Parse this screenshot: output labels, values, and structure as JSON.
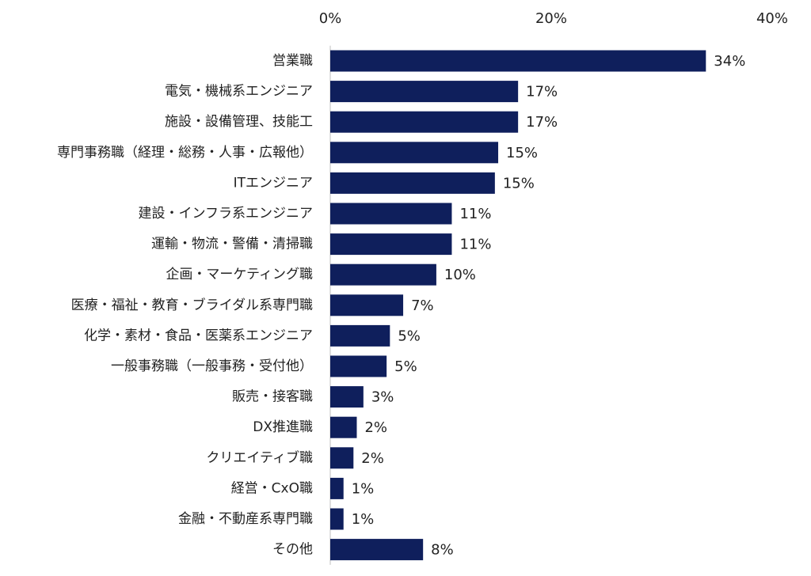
{
  "chart_data": {
    "type": "bar",
    "orientation": "horizontal",
    "categories": [
      "営業職",
      "電気・機械系エンジニア",
      "施設・設備管理、技能工",
      "専門事務職（経理・総務・人事・広報他）",
      "ITエンジニア",
      "建設・インフラ系エンジニア",
      "運輸・物流・警備・清掃職",
      "企画・マーケティング職",
      "医療・福祉・教育・ブライダル系専門職",
      "化学・素材・食品・医薬系エンジニア",
      "一般事務職（一般事務・受付他）",
      "販売・接客職",
      "DX推進職",
      "クリエイティブ職",
      "経営・CxO職",
      "金融・不動産系専門職",
      "その他"
    ],
    "values": [
      34,
      17,
      17,
      15,
      15,
      11,
      11,
      10,
      7,
      5,
      5,
      3,
      2,
      2,
      1,
      1,
      8
    ],
    "bar_values": [
      34.0,
      17.0,
      17.0,
      15.2,
      14.9,
      11.0,
      11.0,
      9.6,
      6.6,
      5.4,
      5.1,
      3.0,
      2.4,
      2.1,
      1.2,
      1.2,
      8.4
    ],
    "value_labels": [
      "34%",
      "17%",
      "17%",
      "15%",
      "15%",
      "11%",
      "11%",
      "10%",
      "7%",
      "5%",
      "5%",
      "3%",
      "2%",
      "2%",
      "1%",
      "1%",
      "8%"
    ],
    "x_ticks": [
      0,
      20,
      40
    ],
    "x_tick_labels": [
      "0%",
      "20%",
      "40%"
    ],
    "xlim": [
      0,
      40
    ],
    "axis_position": "top",
    "grid": false,
    "legend": "none",
    "bar_color": "#0f1f5c",
    "axis_color": "#bfbfbf",
    "title": "",
    "xlabel": "",
    "ylabel": ""
  }
}
